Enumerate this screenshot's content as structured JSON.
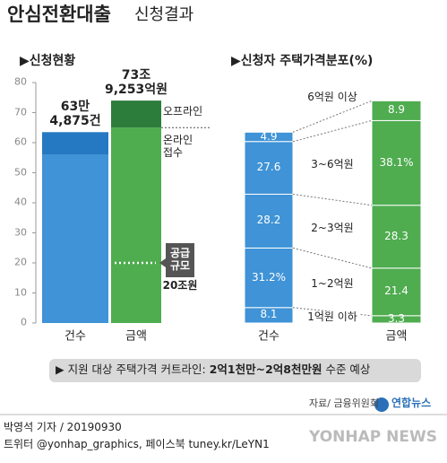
{
  "header": {
    "title": "안심전환대출",
    "subtitle": "신청결과"
  },
  "chart_data": [
    {
      "type": "bar",
      "stacked": true,
      "title": "▶신청현황",
      "categories": [
        "건수",
        "금액"
      ],
      "ylim": [
        0,
        80
      ],
      "yticks": [
        0,
        10,
        20,
        30,
        40,
        50,
        60,
        70,
        80
      ],
      "series": [
        {
          "name": "온라인\n접수",
          "colors": [
            "#3f93d6",
            "#4fac4f"
          ],
          "values": [
            56,
            65
          ]
        },
        {
          "name": "오프라인",
          "colors": [
            "#2479c2",
            "#2c7d3b"
          ],
          "values": [
            7.5,
            9
          ]
        }
      ],
      "totals": [
        63.4875,
        73.9253
      ],
      "total_labels": [
        "63만\n4,875건",
        "73조\n9,253억원"
      ],
      "annotation": {
        "text": "공급\n규모",
        "value": 20,
        "value_label": "20조원"
      }
    },
    {
      "type": "bar",
      "stacked": true,
      "title": "▶신청자 주택가격분포(%)",
      "categories": [
        "건수",
        "금액"
      ],
      "ylim": [
        0,
        100
      ],
      "colors": [
        "#3f93d6",
        "#4fac4f"
      ],
      "series": [
        {
          "name": "1억원 이하",
          "values": [
            8.1,
            3.3
          ],
          "value_labels": [
            "8.1",
            "3.3"
          ]
        },
        {
          "name": "1~2억원",
          "values": [
            31.2,
            21.4
          ],
          "value_labels": [
            "31.2%",
            "21.4"
          ]
        },
        {
          "name": "2~3억원",
          "values": [
            28.2,
            28.3
          ],
          "value_labels": [
            "28.2",
            "28.3"
          ]
        },
        {
          "name": "3~6억원",
          "values": [
            27.6,
            38.1
          ],
          "value_labels": [
            "27.6",
            "38.1%"
          ]
        },
        {
          "name": "6억원 이상",
          "values": [
            4.9,
            8.9
          ],
          "value_labels": [
            "4.9",
            "8.9"
          ]
        }
      ]
    }
  ],
  "banner": {
    "prefix": "▶ 지원 대상 주택가격 커트라인:",
    "highlight": "2억1천만~2억8천만원",
    "suffix": "수준 예상"
  },
  "source": "자료/ 금융위원회",
  "logo": "연합뉴스",
  "byline": "박영석 기자 / 20190930",
  "social": "트위터 @yonhap_graphics, 페이스북 tuney.kr/LeYN1",
  "watermark": "YONHAP NEWS"
}
